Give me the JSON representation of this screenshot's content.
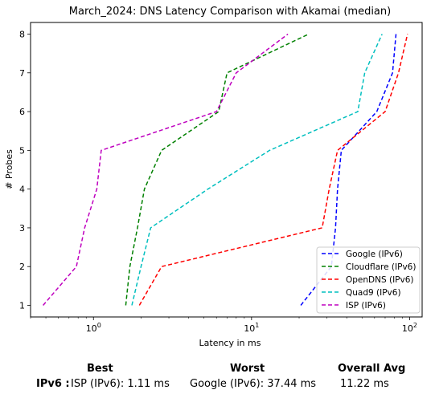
{
  "chart_data": {
    "type": "line",
    "title": "March_2024: DNS Latency Comparison with Akamai (median)",
    "xlabel": "Latency in ms",
    "ylabel": "# Probes",
    "xscale": "log",
    "xlim": [
      0.4,
      120
    ],
    "ylim": [
      0.7,
      8.3
    ],
    "x_ticks": [
      {
        "value": 1,
        "base": "10",
        "exp": "0"
      },
      {
        "value": 10,
        "base": "10",
        "exp": "1"
      },
      {
        "value": 100,
        "base": "10",
        "exp": "2"
      }
    ],
    "y_ticks": [
      1,
      2,
      3,
      4,
      5,
      6,
      7,
      8
    ],
    "grid": false,
    "legend_position": "lower-right",
    "series": [
      {
        "name": "Google (IPv6)",
        "color": "#0000ff",
        "points": [
          [
            20.5,
            1
          ],
          [
            32,
            2
          ],
          [
            34,
            3
          ],
          [
            35,
            4
          ],
          [
            37,
            5
          ],
          [
            62,
            6
          ],
          [
            78,
            7
          ],
          [
            82,
            8
          ]
        ]
      },
      {
        "name": "Cloudflare (IPv6)",
        "color": "#008000",
        "points": [
          [
            1.6,
            1
          ],
          [
            1.7,
            2
          ],
          [
            1.9,
            3
          ],
          [
            2.1,
            4
          ],
          [
            2.7,
            5
          ],
          [
            6.2,
            6
          ],
          [
            7.0,
            7
          ],
          [
            23,
            8
          ]
        ]
      },
      {
        "name": "OpenDNS (IPv6)",
        "color": "#ff0000",
        "points": [
          [
            1.95,
            1
          ],
          [
            2.7,
            2
          ],
          [
            28,
            3
          ],
          [
            31,
            4
          ],
          [
            35,
            5
          ],
          [
            70,
            6
          ],
          [
            85,
            7
          ],
          [
            97,
            8
          ]
        ]
      },
      {
        "name": "Quad9 (IPv6)",
        "color": "#00bfbf",
        "points": [
          [
            1.75,
            1
          ],
          [
            2.0,
            2
          ],
          [
            2.3,
            3
          ],
          [
            5.3,
            4
          ],
          [
            13,
            5
          ],
          [
            47,
            6
          ],
          [
            52,
            7
          ],
          [
            67,
            8
          ]
        ]
      },
      {
        "name": "ISP (IPv6)",
        "color": "#bf00bf",
        "points": [
          [
            0.48,
            1
          ],
          [
            0.78,
            2
          ],
          [
            0.88,
            3
          ],
          [
            1.05,
            4
          ],
          [
            1.12,
            5
          ],
          [
            6.0,
            6
          ],
          [
            8.0,
            7
          ],
          [
            17,
            8
          ]
        ]
      }
    ]
  },
  "summary": {
    "headers": {
      "best": "Best",
      "worst": "Worst",
      "avg": "Overall Avg"
    },
    "row_label": "IPv6 :",
    "best": "ISP (IPv6): 1.11 ms",
    "worst": "Google (IPv6): 37.44 ms",
    "avg": "11.22 ms"
  }
}
